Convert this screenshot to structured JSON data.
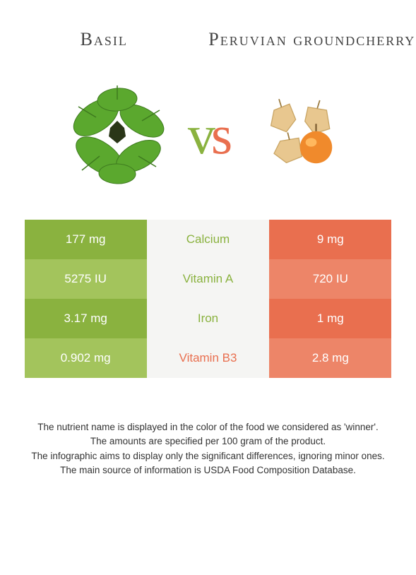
{
  "header": {
    "left_title": "Basil",
    "right_title": "Peruvian groundcherry"
  },
  "vs": {
    "v": "v",
    "s": "s"
  },
  "colors": {
    "green_dark": "#8ab23f",
    "green_light": "#a3c45c",
    "orange_dark": "#e96f4f",
    "orange_light": "#ed8568",
    "mid_bg": "#f5f5f3",
    "text_dark": "#333333",
    "white": "#ffffff"
  },
  "rows": [
    {
      "left": "177 mg",
      "mid": "Calcium",
      "right": "9 mg",
      "winner": "left",
      "left_bg": "#8ab23f",
      "right_bg": "#e96f4f"
    },
    {
      "left": "5275 IU",
      "mid": "Vitamin A",
      "right": "720 IU",
      "winner": "left",
      "left_bg": "#a3c45c",
      "right_bg": "#ed8568"
    },
    {
      "left": "3.17 mg",
      "mid": "Iron",
      "right": "1 mg",
      "winner": "left",
      "left_bg": "#8ab23f",
      "right_bg": "#e96f4f"
    },
    {
      "left": "0.902 mg",
      "mid": "Vitamin B3",
      "right": "2.8 mg",
      "winner": "right",
      "left_bg": "#a3c45c",
      "right_bg": "#ed8568"
    }
  ],
  "footnotes": [
    "The nutrient name is displayed in the color of the food we considered as 'winner'.",
    "The amounts are specified per 100 gram of the product.",
    "The infographic aims to display only the significant differences, ignoring minor ones.",
    "The main source of information is USDA Food Composition Database."
  ]
}
